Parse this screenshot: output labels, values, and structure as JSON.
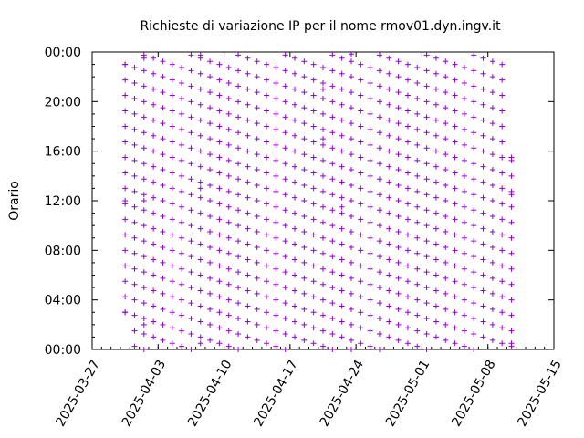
{
  "chart_data": {
    "type": "scatter",
    "title": "Richieste di variazione IP per il nome rmov01.dyn.ingv.it",
    "xlabel": "",
    "ylabel": "Orario",
    "x_axis": {
      "kind": "date",
      "range": [
        "2025-03-27",
        "2025-05-15"
      ],
      "ticks": [
        "2025-03-27",
        "2025-04-03",
        "2025-04-10",
        "2025-04-17",
        "2025-04-24",
        "2025-05-01",
        "2025-05-08",
        "2025-05-15"
      ],
      "tick_rotation_deg": 60
    },
    "y_axis": {
      "kind": "time_of_day",
      "range": [
        "00:00",
        "24:00"
      ],
      "ticks": [
        "00:00",
        "04:00",
        "08:00",
        "12:00",
        "16:00",
        "20:00",
        "00:00"
      ]
    },
    "marker": "plus",
    "marker_color": "#9400d3",
    "grid": false,
    "legend": "none",
    "series": [
      {
        "description": "IP change requests recorded roughly every 75 minutes from 2025-03-30 to 2025-05-10",
        "points": [
          {
            "date": "2025-03-30",
            "time": "03:00"
          },
          {
            "date": "2025-03-30",
            "time": "12:00"
          },
          {
            "date": "2025-03-30",
            "time": "23:00"
          },
          {
            "date": "2025-04-01",
            "time": "02:00"
          },
          {
            "date": "2025-04-01",
            "time": "12:00"
          },
          {
            "date": "2025-04-01",
            "time": "23:30"
          },
          {
            "date": "2025-04-07",
            "time": "00:30"
          },
          {
            "date": "2025-04-07",
            "time": "13:00"
          },
          {
            "date": "2025-04-07",
            "time": "23:45"
          },
          {
            "date": "2025-04-20",
            "time": "17:00"
          },
          {
            "date": "2025-04-20",
            "time": "21:00"
          },
          {
            "date": "2025-04-22",
            "time": "11:30"
          },
          {
            "date": "2025-04-22",
            "time": "13:30"
          },
          {
            "date": "2025-04-23",
            "time": "00:00"
          },
          {
            "date": "2025-04-23",
            "time": "23:50"
          },
          {
            "date": "2025-05-10",
            "time": "00:30"
          },
          {
            "date": "2025-05-10",
            "time": "12:30"
          },
          {
            "date": "2025-05-10",
            "time": "15:30"
          }
        ]
      }
    ]
  }
}
